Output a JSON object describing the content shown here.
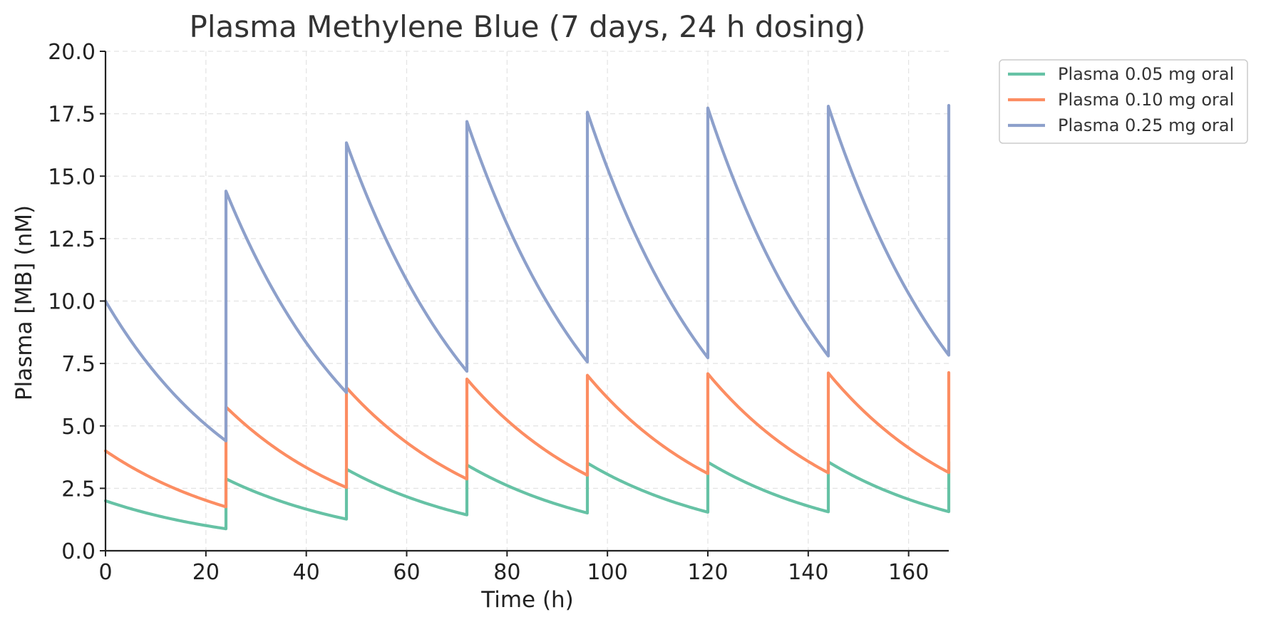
{
  "chart_data": {
    "type": "line",
    "title": "Plasma Methylene Blue (7 days, 24 h dosing)",
    "xlabel": "Time (h)",
    "ylabel": "Plasma [MB] (nM)",
    "xlim": [
      0,
      168
    ],
    "ylim": [
      0,
      20
    ],
    "xticks": [
      0,
      20,
      40,
      60,
      80,
      100,
      120,
      140,
      160
    ],
    "yticks": [
      0.0,
      2.5,
      5.0,
      7.5,
      10.0,
      12.5,
      15.0,
      17.5,
      20.0
    ],
    "ytick_labels": [
      "0.0",
      "2.5",
      "5.0",
      "7.5",
      "10.0",
      "12.5",
      "15.0",
      "17.5",
      "20.0"
    ],
    "grid": true,
    "legend_position": "outside top-right",
    "dosing_interval_h": 24,
    "series": [
      {
        "name": "Plasma 0.05 mg oral",
        "color": "#66c2a5",
        "initial": 2.0,
        "dose_increment": 2.0,
        "trough_ratio": 0.44,
        "points": [
          [
            0,
            2.0
          ],
          [
            24,
            0.88
          ],
          [
            24,
            2.88
          ],
          [
            48,
            1.27
          ],
          [
            48,
            3.27
          ],
          [
            72,
            1.44
          ],
          [
            72,
            3.44
          ],
          [
            96,
            1.51
          ],
          [
            96,
            3.51
          ],
          [
            120,
            1.54
          ],
          [
            120,
            3.54
          ],
          [
            144,
            1.56
          ],
          [
            144,
            3.56
          ],
          [
            168,
            1.57
          ],
          [
            168,
            3.57
          ]
        ]
      },
      {
        "name": "Plasma 0.10 mg oral",
        "color": "#fc8d62",
        "initial": 4.0,
        "dose_increment": 4.0,
        "trough_ratio": 0.44,
        "points": [
          [
            0,
            4.0
          ],
          [
            24,
            1.76
          ],
          [
            24,
            5.76
          ],
          [
            48,
            2.53
          ],
          [
            48,
            6.53
          ],
          [
            72,
            2.87
          ],
          [
            72,
            6.87
          ],
          [
            96,
            3.02
          ],
          [
            96,
            7.02
          ],
          [
            120,
            3.09
          ],
          [
            120,
            7.09
          ],
          [
            144,
            3.12
          ],
          [
            144,
            7.12
          ],
          [
            168,
            3.13
          ],
          [
            168,
            7.13
          ]
        ]
      },
      {
        "name": "Plasma 0.25 mg oral",
        "color": "#8da0cb",
        "initial": 10.0,
        "dose_increment": 10.0,
        "trough_ratio": 0.44,
        "points": [
          [
            0,
            10.0
          ],
          [
            24,
            4.4
          ],
          [
            24,
            14.4
          ],
          [
            48,
            6.34
          ],
          [
            48,
            16.34
          ],
          [
            72,
            7.19
          ],
          [
            72,
            17.19
          ],
          [
            96,
            7.56
          ],
          [
            96,
            17.56
          ],
          [
            120,
            7.73
          ],
          [
            120,
            17.73
          ],
          [
            144,
            7.8
          ],
          [
            144,
            17.8
          ],
          [
            168,
            7.83
          ],
          [
            168,
            17.83
          ]
        ]
      }
    ]
  }
}
